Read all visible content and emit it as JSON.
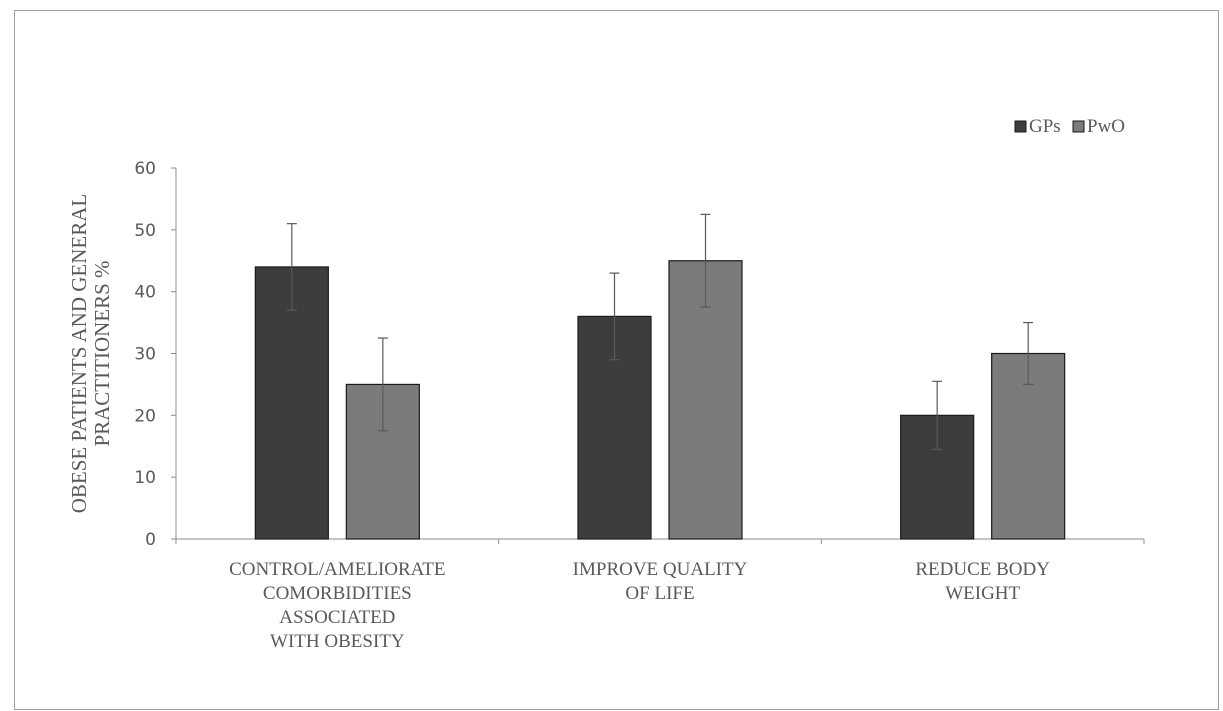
{
  "chart_data": {
    "type": "bar",
    "title": "",
    "xlabel": "",
    "ylabel": "OBESE PATIENTS AND GENERAL PRACTITIONERS %",
    "ylabel_lines": [
      "OBESE PATIENTS AND GENERAL",
      "PRACTITIONERS %"
    ],
    "ylim": [
      0,
      60
    ],
    "yticks": [
      0,
      10,
      20,
      30,
      40,
      50,
      60
    ],
    "categories": [
      "CONTROL/AMELIORATE COMORBIDITIES ASSOCIATED WITH OBESITY",
      "IMPROVE QUALITY OF LIFE",
      "REDUCE BODY WEIGHT"
    ],
    "category_label_lines": [
      [
        "CONTROL/AMELIORATE",
        "COMORBIDITIES",
        "ASSOCIATED",
        "WITH OBESITY"
      ],
      [
        "IMPROVE QUALITY",
        "OF LIFE"
      ],
      [
        "REDUCE BODY",
        "WEIGHT"
      ]
    ],
    "series": [
      {
        "name": "GPs",
        "values": [
          44,
          36,
          20
        ],
        "errors": [
          7,
          7,
          5.5
        ],
        "color": "#3d3d3d"
      },
      {
        "name": "PwO",
        "values": [
          25,
          45,
          30
        ],
        "errors": [
          7.5,
          7.5,
          5
        ],
        "color": "#7b7b7b"
      }
    ],
    "grid": false,
    "legend_position": "top-right",
    "error_bars": true
  }
}
